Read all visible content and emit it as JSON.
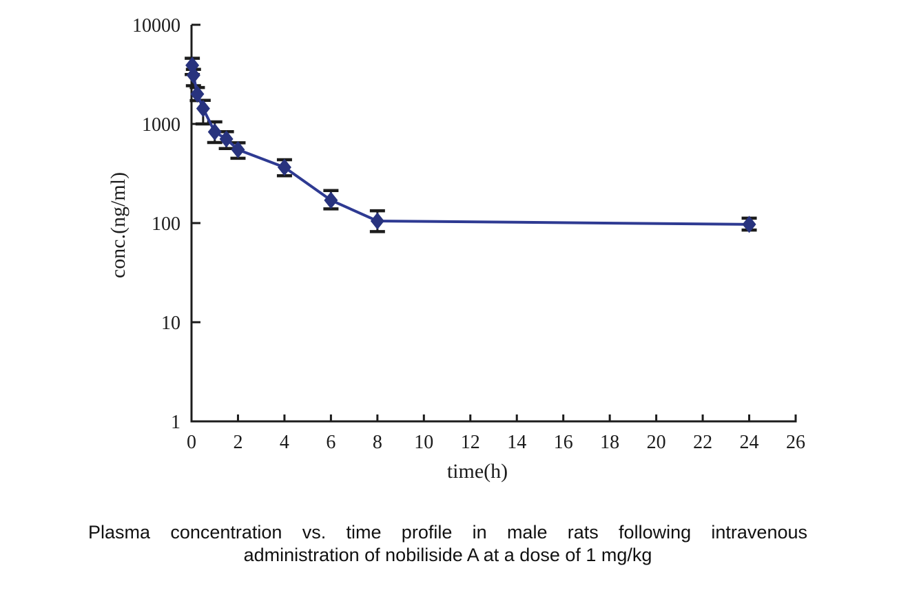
{
  "chart_data": {
    "type": "line",
    "title": "",
    "xlabel": "time(h)",
    "ylabel": "conc.(ng/ml)",
    "x_scale": "linear",
    "y_scale": "log",
    "xlim": [
      0,
      26
    ],
    "ylim": [
      1,
      10000
    ],
    "x_ticks": [
      0,
      2,
      4,
      6,
      8,
      10,
      12,
      14,
      16,
      18,
      20,
      22,
      24,
      26
    ],
    "y_ticks": [
      10000,
      1000,
      100,
      10,
      1
    ],
    "grid": false,
    "legend": "none",
    "series": [
      {
        "marker": "diamond",
        "line_color": "#2e3a92",
        "marker_color": "#28337e",
        "error_bar_color": "#1c1c1c",
        "points": [
          {
            "time_h": 0.033,
            "conc_ng_ml": 3900,
            "err_upper": 4600,
            "err_lower": 3150
          },
          {
            "time_h": 0.083,
            "conc_ng_ml": 3100,
            "err_upper": 3550,
            "err_lower": 2430
          },
          {
            "time_h": 0.25,
            "conc_ng_ml": 2000,
            "err_upper": 2330,
            "err_lower": 1720
          },
          {
            "time_h": 0.5,
            "conc_ng_ml": 1430,
            "err_upper": 1730,
            "err_lower": 1000
          },
          {
            "time_h": 1,
            "conc_ng_ml": 830,
            "err_upper": 1050,
            "err_lower": 650
          },
          {
            "time_h": 1.5,
            "conc_ng_ml": 705,
            "err_upper": 835,
            "err_lower": 565
          },
          {
            "time_h": 2,
            "conc_ng_ml": 550,
            "err_upper": 645,
            "err_lower": 450
          },
          {
            "time_h": 4,
            "conc_ng_ml": 365,
            "err_upper": 435,
            "err_lower": 300
          },
          {
            "time_h": 6,
            "conc_ng_ml": 170,
            "err_upper": 213,
            "err_lower": 139
          },
          {
            "time_h": 8,
            "conc_ng_ml": 105,
            "err_upper": 133,
            "err_lower": 82
          },
          {
            "time_h": 24,
            "conc_ng_ml": 97,
            "err_upper": 112,
            "err_lower": 85
          }
        ]
      }
    ]
  },
  "caption": {
    "line1": "Plasma concentration vs. time profile in male rats following intravenous",
    "line2": "administration of nobiliside A at a dose of 1 mg/kg"
  },
  "colors": {
    "background": "#ffffff",
    "axis": "#1c1c1c",
    "series_line": "#2e3a92",
    "marker": "#28337e",
    "error_bar": "#1c1c1c",
    "text": "#111111"
  }
}
